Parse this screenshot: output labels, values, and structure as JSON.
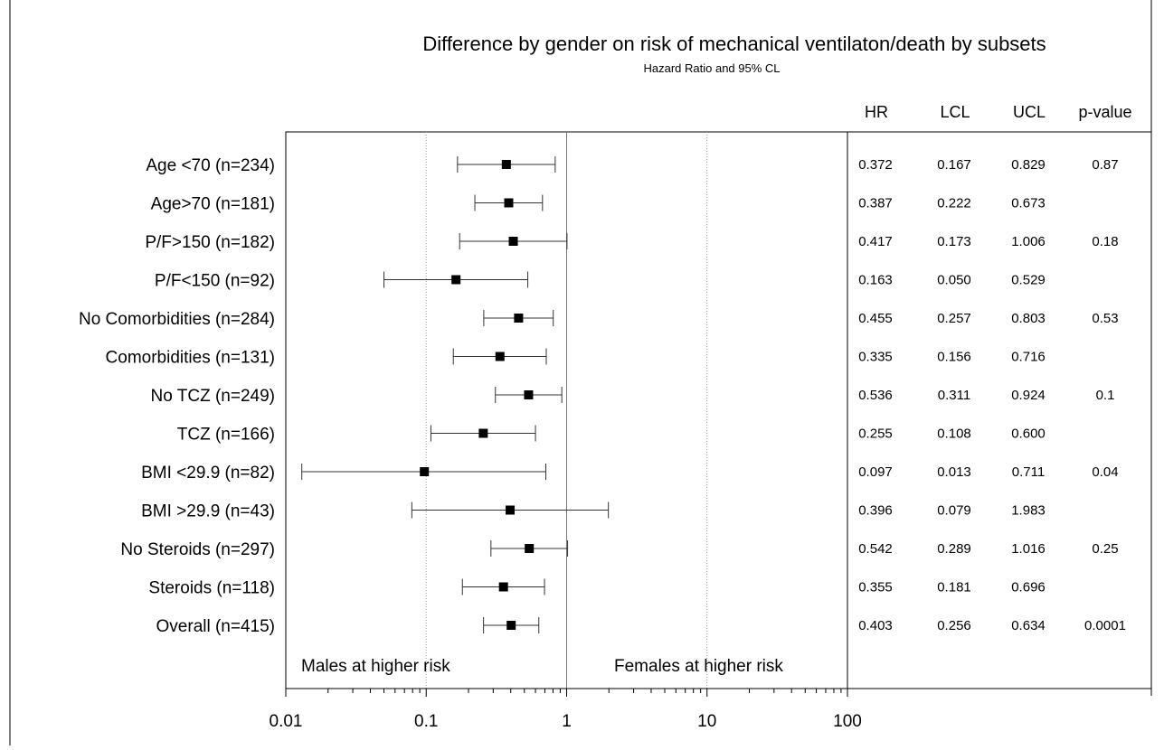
{
  "chart_data": {
    "type": "forest",
    "title": "Difference by gender on risk of mechanical ventilaton/death by subsets",
    "subtitle": "Hazard Ratio and 95% CL",
    "x_scale": "log",
    "xlim": [
      0.01,
      100
    ],
    "x_ticks": [
      "0.01",
      "0.1",
      "1",
      "10",
      "100"
    ],
    "reference_line": 1,
    "columns": [
      "HR",
      "LCL",
      "UCL",
      "p-value"
    ],
    "annotations": {
      "left": "Males at higher risk",
      "right": "Females at higher risk"
    },
    "rows": [
      {
        "label": "Age <70 (n=234)",
        "hr": "0.372",
        "lcl": "0.167",
        "ucl": "0.829",
        "p": "0.87"
      },
      {
        "label": "Age>70 (n=181)",
        "hr": "0.387",
        "lcl": "0.222",
        "ucl": "0.673",
        "p": ""
      },
      {
        "label": "P/F>150 (n=182)",
        "hr": "0.417",
        "lcl": "0.173",
        "ucl": "1.006",
        "p": "0.18"
      },
      {
        "label": "P/F<150 (n=92)",
        "hr": "0.163",
        "lcl": "0.050",
        "ucl": "0.529",
        "p": ""
      },
      {
        "label": "No Comorbidities (n=284)",
        "hr": "0.455",
        "lcl": "0.257",
        "ucl": "0.803",
        "p": "0.53"
      },
      {
        "label": "Comorbidities (n=131)",
        "hr": "0.335",
        "lcl": "0.156",
        "ucl": "0.716",
        "p": ""
      },
      {
        "label": "No TCZ (n=249)",
        "hr": "0.536",
        "lcl": "0.311",
        "ucl": "0.924",
        "p": "0.1"
      },
      {
        "label": "TCZ (n=166)",
        "hr": "0.255",
        "lcl": "0.108",
        "ucl": "0.600",
        "p": ""
      },
      {
        "label": "BMI <29.9 (n=82)",
        "hr": "0.097",
        "lcl": "0.013",
        "ucl": "0.711",
        "p": "0.04"
      },
      {
        "label": "BMI >29.9 (n=43)",
        "hr": "0.396",
        "lcl": "0.079",
        "ucl": "1.983",
        "p": ""
      },
      {
        "label": "No Steroids (n=297)",
        "hr": "0.542",
        "lcl": "0.289",
        "ucl": "1.016",
        "p": "0.25"
      },
      {
        "label": "Steroids (n=118)",
        "hr": "0.355",
        "lcl": "0.181",
        "ucl": "0.696",
        "p": ""
      },
      {
        "label": "Overall (n=415)",
        "hr": "0.403",
        "lcl": "0.256",
        "ucl": "0.634",
        "p": "0.0001"
      }
    ]
  }
}
